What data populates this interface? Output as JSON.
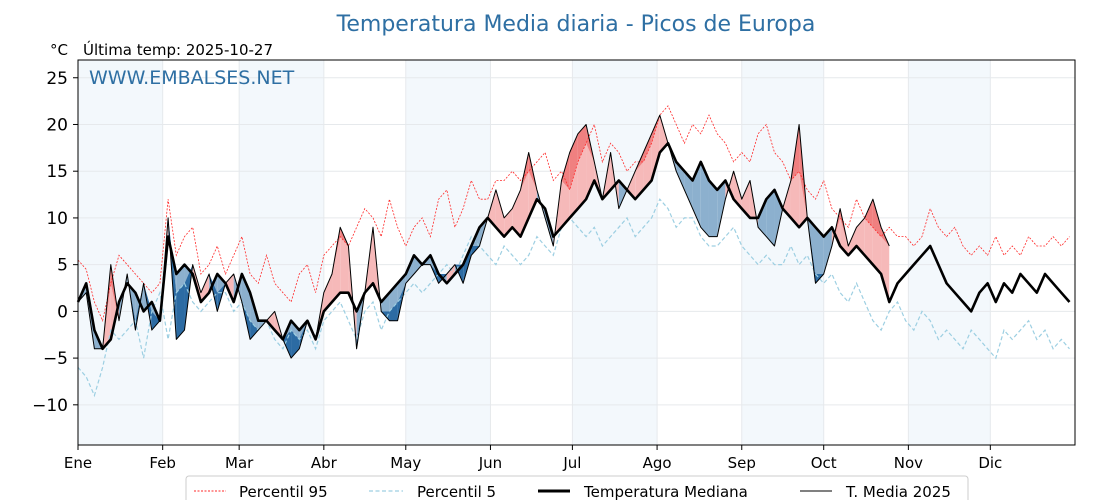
{
  "chart_data": {
    "type": "line",
    "title": "Temperatura Media diaria - Picos de Europa",
    "unit_label": "°C",
    "subtitle": "Última temp: 2025-10-27",
    "watermark": "WWW.EMBALSES.NET",
    "xlabel": "",
    "ylabel": "°C",
    "ylim": [
      -14.3,
      26.9
    ],
    "xlim_days": [
      0,
      365
    ],
    "yticks": [
      25,
      20,
      15,
      10,
      5,
      0,
      -5,
      -10
    ],
    "ytick_labels": [
      "25",
      "20",
      "15",
      "10",
      "5",
      "0",
      "−5",
      "−10"
    ],
    "month_labels": [
      "Ene",
      "Feb",
      "Mar",
      "Abr",
      "May",
      "Jun",
      "Jul",
      "Ago",
      "Sep",
      "Oct",
      "Nov",
      "Dic"
    ],
    "month_start_days": [
      0,
      31,
      59,
      90,
      120,
      151,
      181,
      212,
      243,
      273,
      304,
      334
    ],
    "grid": true,
    "sample_step_days": 3,
    "series": [
      {
        "name": "Percentil 95",
        "style": "dotted-red",
        "color": "#ff2a2a",
        "values": [
          5.5,
          4.5,
          1,
          -1,
          3,
          6,
          5,
          4,
          3,
          2,
          3,
          12,
          6,
          8,
          9,
          4,
          5,
          7,
          4,
          6,
          8,
          4,
          3,
          6,
          3,
          2,
          1,
          4,
          5,
          2,
          6,
          7,
          8,
          7,
          9,
          11,
          10,
          8,
          12,
          9,
          7,
          9,
          10,
          8,
          12,
          13,
          9,
          11,
          14,
          12,
          12,
          14,
          14,
          15,
          14,
          15,
          16,
          17,
          14,
          15,
          13,
          16,
          18,
          20,
          16,
          18,
          17,
          15,
          16,
          16,
          18,
          21,
          22,
          20,
          18,
          20,
          19,
          21,
          19,
          18,
          16,
          17,
          16,
          19,
          20,
          17,
          16,
          14,
          15,
          13,
          12,
          14,
          11,
          10,
          9,
          12,
          10,
          9,
          8,
          9,
          8,
          8,
          7,
          8,
          11,
          9,
          8,
          9,
          7,
          6,
          7,
          6,
          8,
          6,
          7,
          6,
          8,
          7,
          7,
          8,
          7,
          8
        ]
      },
      {
        "name": "Percentil 5",
        "style": "dashed-lightblue",
        "color": "#9dcfe2",
        "values": [
          -6,
          -7,
          -9,
          -6,
          -2,
          -3,
          -2,
          -1,
          -5,
          0,
          2,
          -3,
          2,
          3,
          1,
          0,
          1,
          2,
          2,
          0,
          1,
          -1,
          -2,
          -1,
          -3,
          -4,
          -2,
          -3,
          -2,
          -4,
          -1,
          0,
          1,
          -1,
          -3,
          0,
          1,
          -2,
          0,
          1,
          2,
          3,
          2,
          3,
          4,
          5,
          4,
          6,
          8,
          7,
          6,
          5,
          7,
          6,
          5,
          6,
          8,
          7,
          6,
          9,
          10,
          9,
          8,
          9,
          7,
          8,
          9,
          10,
          8,
          9,
          10,
          12,
          11,
          9,
          10,
          10,
          8,
          7,
          7,
          8,
          9,
          7,
          6,
          5,
          6,
          5,
          5,
          7,
          5,
          6,
          4,
          3,
          4,
          2,
          1,
          3,
          1,
          -1,
          -2,
          0,
          1,
          -1,
          -2,
          0,
          -1,
          -3,
          -2,
          -3,
          -4,
          -2,
          -3,
          -4,
          -5,
          -2,
          -3,
          -2,
          -1,
          -3,
          -2,
          -4,
          -3,
          -4
        ]
      },
      {
        "name": "Temperatura Mediana",
        "style": "thick-black",
        "color": "#000000",
        "values": [
          1,
          3,
          -2,
          -4,
          -3,
          1,
          3,
          2,
          0,
          1,
          -1,
          8,
          4,
          5,
          4,
          1,
          2,
          4,
          3,
          1,
          4,
          2,
          -1,
          -1,
          -2,
          -3,
          -1,
          -2,
          -1,
          -3,
          0,
          1,
          2,
          2,
          0,
          2,
          3,
          1,
          2,
          3,
          4,
          6,
          5,
          6,
          4,
          3,
          4,
          5,
          7,
          9,
          10,
          9,
          8,
          9,
          8,
          10,
          12,
          11,
          8,
          9,
          10,
          11,
          12,
          14,
          12,
          13,
          14,
          13,
          12,
          13,
          14,
          17,
          18,
          16,
          15,
          14,
          16,
          14,
          13,
          14,
          12,
          11,
          10,
          10,
          12,
          13,
          11,
          10,
          9,
          10,
          9,
          8,
          9,
          7,
          6,
          7,
          6,
          5,
          4,
          1,
          3,
          4,
          5,
          6,
          7,
          5,
          3,
          2,
          1,
          0,
          2,
          3,
          1,
          3,
          2,
          4,
          3,
          2,
          4,
          3,
          2,
          1
        ]
      },
      {
        "name": "T. Media 2025",
        "style": "thin-black",
        "color": "#000000",
        "values": [
          1,
          2,
          -4,
          -4,
          5,
          -1,
          4,
          -2,
          3,
          -2,
          -1,
          10,
          -3,
          -2,
          5,
          2,
          4,
          0,
          3,
          4,
          1,
          -3,
          -2,
          -1,
          0,
          -3,
          -5,
          -4,
          -1,
          -3,
          2,
          4,
          9,
          7,
          -4,
          2,
          9,
          0,
          -1,
          -1,
          3,
          4,
          5,
          5,
          3,
          4,
          5,
          3,
          6,
          7,
          10,
          13,
          10,
          11,
          13,
          17,
          13,
          10,
          7,
          14,
          17,
          19,
          20,
          16,
          12,
          17,
          11,
          13,
          15,
          17,
          19,
          21,
          18,
          15,
          13,
          11,
          9,
          8,
          8,
          12,
          15,
          12,
          14,
          9,
          8,
          7,
          11,
          14,
          20,
          10,
          3,
          4,
          7,
          11,
          7,
          9,
          10,
          12,
          9,
          7
        ]
      }
    ],
    "legend": {
      "placement": "bottom-center",
      "entries": [
        "Percentil 95",
        "Percentil 5",
        "Temperatura Mediana",
        "T. Media 2025"
      ]
    },
    "fill_colors": {
      "above_p95": "#f08080",
      "median_to_p95": "#f6b9b9",
      "below_p5": "#2c6ba3",
      "median_to_p5": "#8cb0ce"
    },
    "band_color": "#f3f8fc",
    "grid_color": "#e6e9ec"
  }
}
